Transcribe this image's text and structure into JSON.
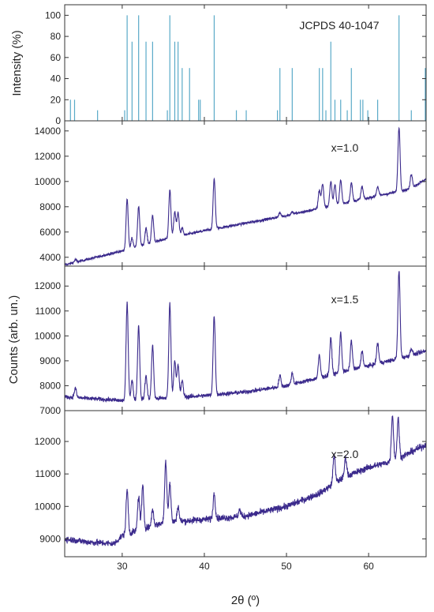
{
  "chart_data": {
    "type": "line",
    "xlabel": "2θ (º)",
    "xlim": [
      23,
      67
    ],
    "xticks": [
      30,
      40,
      50,
      60
    ],
    "shared_ylabel": "Counts (arb. un.)",
    "panels": [
      {
        "type": "bar",
        "ylabel": "Intensity (%)",
        "ylim": [
          0,
          110
        ],
        "yticks": [
          0,
          20,
          40,
          60,
          80,
          100
        ],
        "annotation": "JCPDS 40-1047",
        "color": "#5aaac8",
        "peaks": [
          {
            "x": 23.7,
            "y": 20
          },
          {
            "x": 24.2,
            "y": 20
          },
          {
            "x": 27.0,
            "y": 10
          },
          {
            "x": 30.3,
            "y": 10
          },
          {
            "x": 30.6,
            "y": 100
          },
          {
            "x": 31.2,
            "y": 75
          },
          {
            "x": 32.0,
            "y": 100
          },
          {
            "x": 32.9,
            "y": 75
          },
          {
            "x": 33.7,
            "y": 75
          },
          {
            "x": 35.5,
            "y": 10
          },
          {
            "x": 35.8,
            "y": 100
          },
          {
            "x": 36.4,
            "y": 75
          },
          {
            "x": 36.8,
            "y": 75
          },
          {
            "x": 37.3,
            "y": 50
          },
          {
            "x": 38.2,
            "y": 50
          },
          {
            "x": 39.3,
            "y": 20
          },
          {
            "x": 39.5,
            "y": 20
          },
          {
            "x": 41.2,
            "y": 100
          },
          {
            "x": 43.9,
            "y": 10
          },
          {
            "x": 45.1,
            "y": 10
          },
          {
            "x": 48.9,
            "y": 10
          },
          {
            "x": 49.2,
            "y": 50
          },
          {
            "x": 50.7,
            "y": 50
          },
          {
            "x": 54.0,
            "y": 50
          },
          {
            "x": 54.4,
            "y": 50
          },
          {
            "x": 54.8,
            "y": 10
          },
          {
            "x": 55.4,
            "y": 75
          },
          {
            "x": 55.9,
            "y": 20
          },
          {
            "x": 56.6,
            "y": 20
          },
          {
            "x": 57.4,
            "y": 10
          },
          {
            "x": 57.9,
            "y": 50
          },
          {
            "x": 59.0,
            "y": 20
          },
          {
            "x": 59.3,
            "y": 20
          },
          {
            "x": 59.9,
            "y": 10
          },
          {
            "x": 61.1,
            "y": 20
          },
          {
            "x": 63.7,
            "y": 100
          },
          {
            "x": 65.2,
            "y": 10
          },
          {
            "x": 66.9,
            "y": 50
          }
        ]
      },
      {
        "type": "line",
        "label": "x=1.0",
        "ylim": [
          3300,
          14800
        ],
        "yticks": [
          4000,
          6000,
          8000,
          10000,
          12000,
          14000
        ],
        "color": "#3b2a8c",
        "baseline": [
          [
            23,
            3400
          ],
          [
            30,
            4500
          ],
          [
            35,
            5400
          ],
          [
            40,
            6100
          ],
          [
            45,
            6700
          ],
          [
            50,
            7300
          ],
          [
            55,
            8000
          ],
          [
            60,
            8700
          ],
          [
            65,
            9400
          ],
          [
            67,
            10200
          ]
        ],
        "peaks": [
          {
            "x": 24.3,
            "y": 3800
          },
          {
            "x": 30.6,
            "y": 8600
          },
          {
            "x": 31.2,
            "y": 5500
          },
          {
            "x": 32.0,
            "y": 8000
          },
          {
            "x": 32.9,
            "y": 6300
          },
          {
            "x": 33.7,
            "y": 7300
          },
          {
            "x": 35.8,
            "y": 9300
          },
          {
            "x": 36.4,
            "y": 7600
          },
          {
            "x": 36.8,
            "y": 7500
          },
          {
            "x": 37.3,
            "y": 6300
          },
          {
            "x": 41.2,
            "y": 10200
          },
          {
            "x": 49.2,
            "y": 7500
          },
          {
            "x": 50.7,
            "y": 7600
          },
          {
            "x": 54.0,
            "y": 9300
          },
          {
            "x": 54.4,
            "y": 9800
          },
          {
            "x": 55.4,
            "y": 10000
          },
          {
            "x": 55.9,
            "y": 9700
          },
          {
            "x": 56.6,
            "y": 10100
          },
          {
            "x": 57.9,
            "y": 9900
          },
          {
            "x": 59.2,
            "y": 9600
          },
          {
            "x": 61.1,
            "y": 9600
          },
          {
            "x": 63.7,
            "y": 14300
          },
          {
            "x": 65.2,
            "y": 10600
          }
        ],
        "noise": 110
      },
      {
        "type": "line",
        "label": "x=1.5",
        "ylim": [
          7000,
          12800
        ],
        "yticks": [
          7000,
          8000,
          9000,
          10000,
          11000,
          12000
        ],
        "color": "#3b2a8c",
        "baseline": [
          [
            23,
            7550
          ],
          [
            30,
            7400
          ],
          [
            35,
            7500
          ],
          [
            40,
            7600
          ],
          [
            45,
            7750
          ],
          [
            50,
            8000
          ],
          [
            55,
            8400
          ],
          [
            60,
            8800
          ],
          [
            65,
            9200
          ],
          [
            67,
            9400
          ]
        ],
        "peaks": [
          {
            "x": 24.3,
            "y": 7900
          },
          {
            "x": 30.6,
            "y": 11300
          },
          {
            "x": 31.2,
            "y": 8200
          },
          {
            "x": 32.0,
            "y": 10400
          },
          {
            "x": 32.9,
            "y": 8400
          },
          {
            "x": 33.7,
            "y": 9600
          },
          {
            "x": 35.8,
            "y": 11300
          },
          {
            "x": 36.4,
            "y": 9000
          },
          {
            "x": 36.8,
            "y": 8800
          },
          {
            "x": 37.3,
            "y": 8200
          },
          {
            "x": 41.2,
            "y": 10800
          },
          {
            "x": 49.2,
            "y": 8400
          },
          {
            "x": 50.7,
            "y": 8500
          },
          {
            "x": 54.0,
            "y": 9200
          },
          {
            "x": 55.4,
            "y": 9900
          },
          {
            "x": 56.6,
            "y": 10100
          },
          {
            "x": 57.9,
            "y": 9800
          },
          {
            "x": 59.2,
            "y": 9400
          },
          {
            "x": 61.1,
            "y": 9700
          },
          {
            "x": 63.7,
            "y": 12600
          },
          {
            "x": 65.2,
            "y": 9500
          }
        ],
        "noise": 90
      },
      {
        "type": "line",
        "label": "x=2.0",
        "ylim": [
          8450,
          12950
        ],
        "yticks": [
          9000,
          10000,
          11000,
          12000
        ],
        "color": "#3b2a8c",
        "baseline": [
          [
            23,
            9000
          ],
          [
            26,
            8900
          ],
          [
            29,
            8850
          ],
          [
            30,
            9100
          ],
          [
            35,
            9500
          ],
          [
            40,
            9600
          ],
          [
            45,
            9700
          ],
          [
            50,
            10000
          ],
          [
            54,
            10400
          ],
          [
            57,
            10900
          ],
          [
            60,
            11200
          ],
          [
            63,
            11400
          ],
          [
            67,
            11900
          ]
        ],
        "peaks": [
          {
            "x": 30.6,
            "y": 10500
          },
          {
            "x": 32.0,
            "y": 10300
          },
          {
            "x": 32.5,
            "y": 10600
          },
          {
            "x": 33.7,
            "y": 9900
          },
          {
            "x": 35.3,
            "y": 11400
          },
          {
            "x": 35.8,
            "y": 10700
          },
          {
            "x": 36.8,
            "y": 10000
          },
          {
            "x": 41.2,
            "y": 10400
          },
          {
            "x": 44.3,
            "y": 9900
          },
          {
            "x": 55.8,
            "y": 11600
          },
          {
            "x": 57.2,
            "y": 11500
          },
          {
            "x": 62.9,
            "y": 12800
          },
          {
            "x": 63.6,
            "y": 12700
          }
        ],
        "noise": 110
      }
    ]
  }
}
